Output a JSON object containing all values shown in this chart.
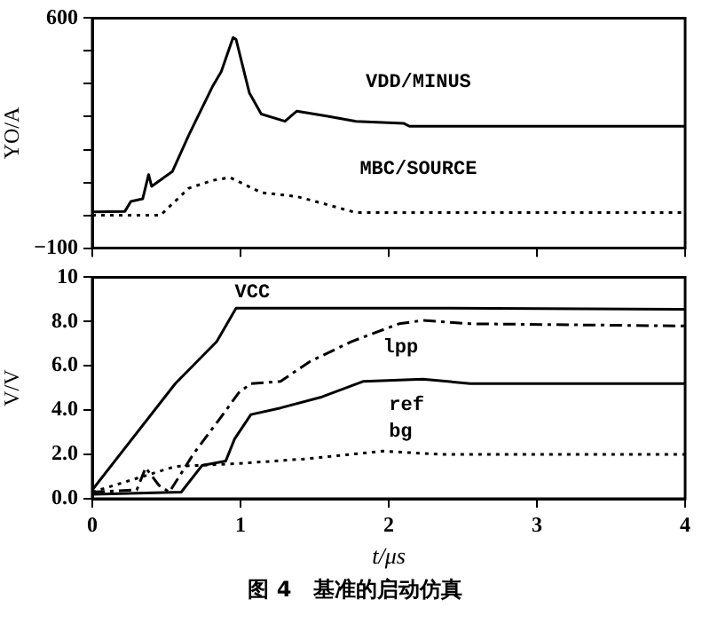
{
  "chart_data": [
    {
      "type": "line",
      "ylabel": "YO/A",
      "xlim": [
        0,
        4
      ],
      "xticks": [
        0,
        1,
        2,
        3,
        4
      ],
      "ylim": [
        -100,
        600
      ],
      "yticks": [
        {
          "value": -100,
          "label": "−100"
        },
        {
          "value": 0,
          "label": null
        },
        {
          "value": 100,
          "label": null
        },
        {
          "value": 200,
          "label": null
        },
        {
          "value": 300,
          "label": null
        },
        {
          "value": 400,
          "label": null
        },
        {
          "value": 500,
          "label": null
        },
        600
      ],
      "tick_labels": "y",
      "grid": false,
      "legend": false,
      "marker": "none",
      "series": [
        {
          "name": "VDD/MINUS",
          "color": "#000000",
          "line_style": "solid",
          "x": [
            0,
            0.22,
            0.26,
            0.34,
            0.38,
            0.4,
            0.54,
            0.65,
            0.69,
            0.81,
            0.87,
            0.95,
            0.97,
            1.06,
            1.14,
            1.3,
            1.38,
            1.58,
            1.78,
            2.1,
            2.14,
            2.3,
            4
          ],
          "values": [
            10,
            12,
            42,
            50,
            124,
            88,
            133,
            243,
            280,
            391,
            437,
            541,
            535,
            372,
            308,
            286,
            317,
            302,
            286,
            280,
            271,
            271,
            271
          ]
        },
        {
          "name": "MBC/SOURCE",
          "color": "#000000",
          "line_style": "dotted",
          "x": [
            0,
            0.46,
            0.65,
            0.81,
            0.93,
            1.14,
            1.38,
            1.54,
            1.78,
            4
          ],
          "values": [
            0,
            0,
            82,
            106,
            115,
            69,
            57,
            38,
            8,
            8
          ]
        }
      ]
    },
    {
      "type": "line",
      "xlabel": "t/μs",
      "ylabel": "V/V",
      "xlim": [
        0,
        4
      ],
      "xticks": [
        0,
        1,
        2,
        3,
        4
      ],
      "ylim": [
        0,
        10
      ],
      "yticks": [
        {
          "value": 0,
          "label": "0.0"
        },
        {
          "value": 2,
          "label": "2.0"
        },
        {
          "value": 4,
          "label": "4.0"
        },
        {
          "value": 6,
          "label": "6.0"
        },
        {
          "value": 8,
          "label": "8.0"
        },
        10
      ],
      "grid": false,
      "legend": false,
      "marker": "none",
      "annotations": [
        "图 4　基准的启动仿真"
      ],
      "series": [
        {
          "name": "VCC",
          "color": "#000000",
          "line_style": "solid",
          "x": [
            0,
            0.56,
            0.84,
            0.97,
            2.4,
            4
          ],
          "values": [
            0.4,
            5.2,
            7.1,
            8.6,
            8.6,
            8.55
          ]
        },
        {
          "name": "lpp",
          "color": "#000000",
          "line_style": "dashed",
          "x": [
            0,
            0.3,
            0.36,
            0.45,
            0.52,
            0.68,
            0.87,
            0.99,
            1.07,
            1.27,
            1.47,
            1.75,
            2.07,
            2.23,
            2.55,
            4
          ],
          "values": [
            0.3,
            0.4,
            1.4,
            0.6,
            0.3,
            2.0,
            3.7,
            4.8,
            5.2,
            5.3,
            6.2,
            7.1,
            7.9,
            8.05,
            7.9,
            7.8
          ]
        },
        {
          "name": "ref",
          "color": "#000000",
          "line_style": "solid",
          "x": [
            0,
            0.6,
            0.74,
            0.9,
            0.96,
            1.07,
            1.27,
            1.55,
            1.83,
            2.23,
            2.55,
            4
          ],
          "values": [
            0.2,
            0.3,
            1.5,
            1.7,
            2.7,
            3.8,
            4.1,
            4.6,
            5.3,
            5.4,
            5.2,
            5.2
          ]
        },
        {
          "name": "bg",
          "color": "#000000",
          "line_style": "dotted",
          "x": [
            0,
            0.56,
            0.96,
            1.44,
            1.96,
            2.36,
            4
          ],
          "values": [
            0.3,
            1.46,
            1.58,
            1.8,
            2.15,
            2.0,
            2.0
          ]
        }
      ]
    }
  ]
}
